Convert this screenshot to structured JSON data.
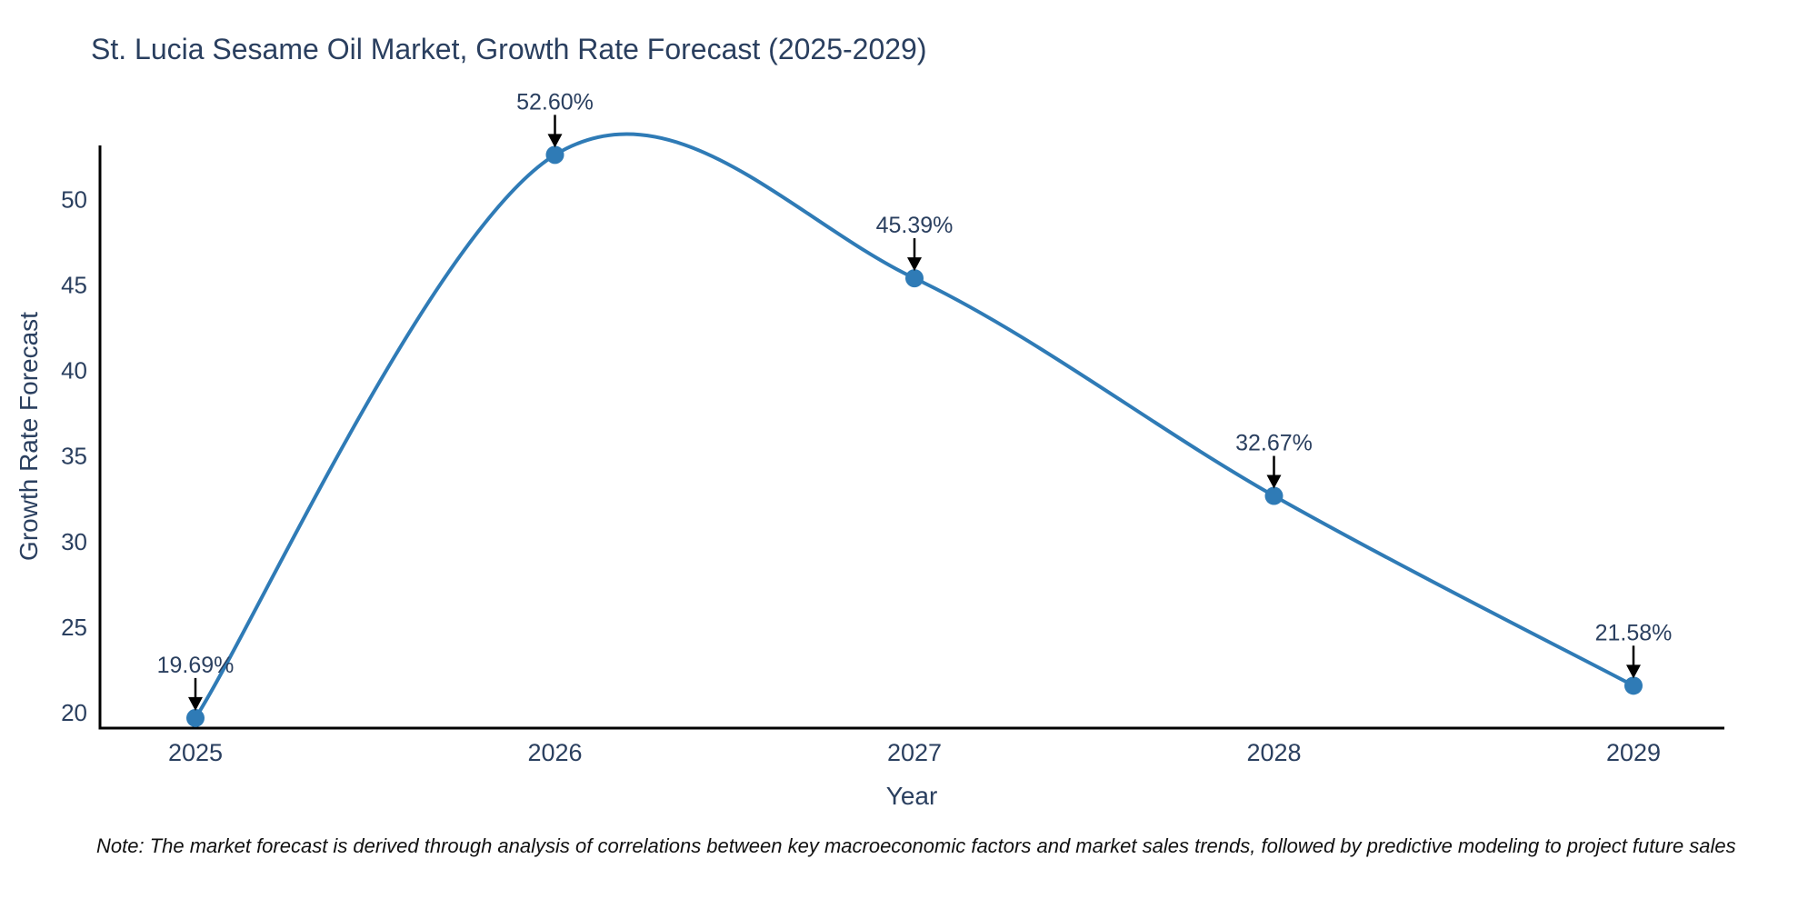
{
  "title": "St. Lucia Sesame Oil Market, Growth Rate Forecast (2025-2029)",
  "footnote": "Note: The market forecast is derived through analysis of correlations between key macroeconomic factors and market sales trends, followed by predictive modeling to project future sales",
  "chart_data": {
    "type": "line",
    "title": "St. Lucia Sesame Oil Market, Growth Rate Forecast (2025-2029)",
    "xlabel": "Year",
    "ylabel": "Growth Rate Forecast",
    "categories": [
      "2025",
      "2026",
      "2027",
      "2028",
      "2029"
    ],
    "values": [
      19.69,
      52.6,
      45.39,
      32.67,
      21.58
    ],
    "point_labels": [
      "19.69%",
      "45.39%",
      "32.67%",
      "21.58%",
      "52.60%"
    ],
    "point_labels_ordered": [
      "19.69%",
      "52.60%",
      "45.39%",
      "32.67%",
      "21.58%"
    ],
    "yticks": [
      20,
      25,
      30,
      35,
      40,
      45,
      50
    ],
    "ylim": [
      19.1,
      53.15
    ],
    "line_shape": "spline",
    "grid": false,
    "legend_position": "none",
    "colors": {
      "line": "#2f7bb6",
      "marker": "#2f7bb6",
      "text": "#2a3f5f",
      "axis": "#000000",
      "annotation_arrow": "#000000",
      "note_text": "#111111"
    }
  }
}
